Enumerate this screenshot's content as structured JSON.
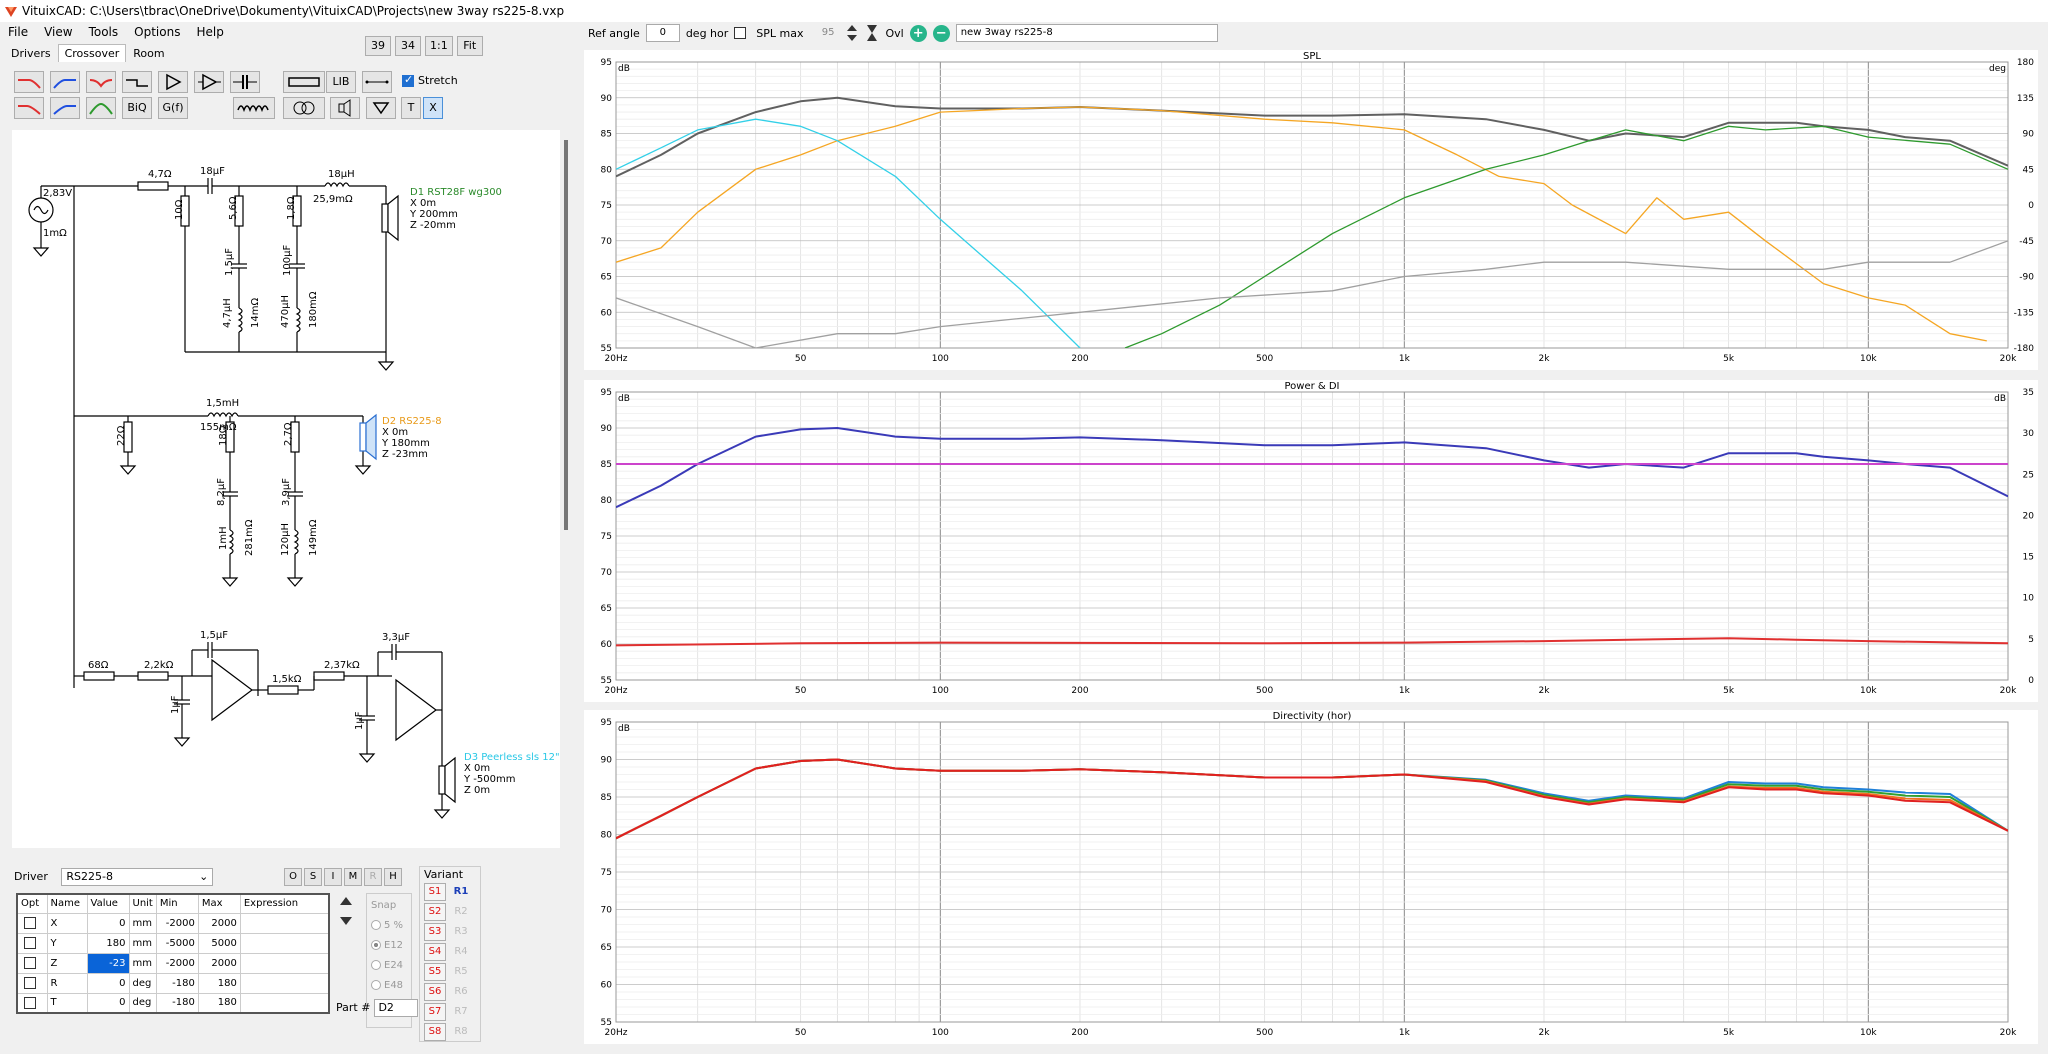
{
  "window": {
    "title": "VituixCAD: C:\\Users\\tbrac\\OneDrive\\Dokumenty\\VituixCAD\\Projects\\new 3way rs225-8.vxp"
  },
  "menu": [
    "File",
    "View",
    "Tools",
    "Options",
    "Help"
  ],
  "tabs": [
    {
      "label": "Drivers"
    },
    {
      "label": "Crossover"
    },
    {
      "label": "Room"
    }
  ],
  "view_buttons": [
    "39",
    "34",
    "1:1",
    "Fit"
  ],
  "toolbar": {
    "lib": "LIB",
    "biq": "BiQ",
    "gf": "G(f)",
    "t": "T",
    "x": "X",
    "stretch_label": "Stretch",
    "stretch_checked": true
  },
  "schematic": {
    "generator": {
      "voltage": "2,83V",
      "impedance": "1mΩ"
    },
    "tweeter": {
      "name": "D1 RST28F wg300",
      "x": "X 0m",
      "y": "Y 200mm",
      "z": "Z -20mm",
      "color": "#2a8a2a",
      "components": [
        "4,7Ω",
        "18µF",
        "18µH",
        "25,9mΩ",
        "10Ω",
        "5,6Ω",
        "1,8Ω",
        "1,5µF",
        "100µF",
        "4,7µH",
        "14mΩ",
        "470µH",
        "180mΩ"
      ]
    },
    "mid": {
      "name": "D2 RS225-8",
      "x": "X 0m",
      "y": "Y 180mm",
      "z": "Z -23mm",
      "color": "#e89a1a",
      "components": [
        "1,5mH",
        "155mΩ",
        "22Ω",
        "18Ω",
        "2,7Ω",
        "8,2µF",
        "3,9µF",
        "1mH",
        "281mΩ",
        "120µH",
        "149mΩ"
      ]
    },
    "woofer": {
      "name": "D3 Peerless sls 12\"",
      "x": "X 0m",
      "y": "Y -500mm",
      "z": "Z 0m",
      "color": "#2ac8e6",
      "components": [
        "68Ω",
        "2,2kΩ",
        "1,5µF",
        "1µF",
        "1,5kΩ",
        "2,37kΩ",
        "3,3µF",
        "1µF"
      ]
    }
  },
  "driver_panel": {
    "label": "Driver",
    "selected": "RS225-8",
    "buttons": [
      "O",
      "S",
      "I",
      "M",
      "R",
      "H"
    ],
    "headers": [
      "Opt",
      "Name",
      "Value",
      "Unit",
      "Min",
      "Max",
      "Expression"
    ],
    "rows": [
      {
        "name": "X",
        "value": "0",
        "unit": "mm",
        "min": "-2000",
        "max": "2000"
      },
      {
        "name": "Y",
        "value": "180",
        "unit": "mm",
        "min": "-5000",
        "max": "5000"
      },
      {
        "name": "Z",
        "value": "-23",
        "unit": "mm",
        "min": "-2000",
        "max": "2000"
      },
      {
        "name": "R",
        "value": "0",
        "unit": "deg",
        "min": "-180",
        "max": "180"
      },
      {
        "name": "T",
        "value": "0",
        "unit": "deg",
        "min": "-180",
        "max": "180"
      }
    ],
    "snap": {
      "label": "Snap",
      "options": [
        "5 %",
        "E12",
        "E24",
        "E48"
      ],
      "selected": "E12"
    },
    "part_label": "Part #",
    "part_value": "D2"
  },
  "variant": {
    "label": "Variant",
    "s": [
      "S1",
      "S2",
      "S3",
      "S4",
      "S5",
      "S6",
      "S7",
      "S8"
    ],
    "r": [
      "R1",
      "R2",
      "R3",
      "R4",
      "R5",
      "R6",
      "R7",
      "R8"
    ],
    "active": "R1"
  },
  "top_controls": {
    "ref_angle_label": "Ref angle",
    "ref_angle": "0",
    "deg_hor": "deg hor",
    "spl_max_label": "SPL max",
    "spl_max": "95",
    "ovl": "Ovl",
    "overlay_name": "new 3way rs225-8"
  },
  "chart_data": [
    {
      "type": "line",
      "title": "SPL",
      "x_label": "",
      "y_label": "dB",
      "y2_label": "deg",
      "x_scale": "log",
      "xlim": [
        20,
        20000
      ],
      "ylim": [
        55,
        95
      ],
      "y2lim": [
        -180,
        180
      ],
      "x_ticks": [
        "20Hz",
        "50",
        "100",
        "200",
        "500",
        "1k",
        "2k",
        "5k",
        "10k",
        "20k"
      ],
      "y_ticks": [
        95,
        90,
        85,
        80,
        75,
        70,
        65,
        60,
        55
      ],
      "y2_ticks": [
        180,
        135,
        90,
        45,
        0,
        -45,
        -90,
        -135,
        -180
      ],
      "series": [
        {
          "color": "#606060",
          "x": [
            20,
            25,
            30,
            40,
            50,
            60,
            80,
            100,
            150,
            200,
            300,
            500,
            700,
            1000,
            1500,
            2000,
            2500,
            3000,
            4000,
            5000,
            6000,
            7000,
            8000,
            10000,
            12000,
            15000,
            20000
          ],
          "y": [
            79,
            82,
            85,
            88,
            89.5,
            90,
            88.8,
            88.5,
            88.5,
            88.7,
            88.2,
            87.5,
            87.5,
            87.7,
            87,
            85.5,
            84,
            85,
            84.5,
            86.5,
            86.5,
            86.5,
            86,
            85.5,
            84.5,
            84,
            80.5
          ]
        },
        {
          "color": "#f5a623",
          "x": [
            20,
            25,
            30,
            40,
            50,
            60,
            80,
            100,
            150,
            200,
            300,
            500,
            700,
            1000,
            1300,
            1600,
            2000,
            2300,
            3000,
            3500,
            4000,
            5000,
            6000,
            8000,
            10000,
            12000,
            15000,
            18000
          ],
          "y": [
            67,
            69,
            74,
            80,
            82,
            84,
            86,
            88,
            88.5,
            88.7,
            88.2,
            87,
            86.5,
            85.5,
            82,
            79,
            78,
            75,
            71,
            76,
            73,
            74,
            70,
            64,
            62,
            61,
            57,
            56
          ]
        },
        {
          "color": "#2e9a2e",
          "x": [
            250,
            300,
            400,
            500,
            700,
            1000,
            1500,
            2000,
            2500,
            3000,
            4000,
            5000,
            6000,
            8000,
            10000,
            15000,
            20000
          ],
          "y": [
            55,
            57,
            61,
            65,
            71,
            76,
            80,
            82,
            84,
            85.5,
            84,
            86,
            85.5,
            86,
            84.5,
            83.5,
            80
          ]
        },
        {
          "color": "#33d0e8",
          "x": [
            20,
            25,
            30,
            40,
            50,
            60,
            80,
            100,
            150,
            200
          ],
          "y": [
            80,
            83,
            85.5,
            87,
            86,
            84,
            79,
            73,
            63,
            55
          ]
        },
        {
          "color": "#a0a0a0",
          "x": [
            20,
            30,
            40,
            60,
            80,
            100,
            200,
            400,
            700,
            1000,
            1500,
            2000,
            3000,
            5000,
            8000,
            10000,
            15000,
            20000
          ],
          "y": [
            62,
            58,
            55,
            57,
            57,
            58,
            60,
            62,
            63,
            65,
            66,
            67,
            67,
            66,
            66,
            67,
            67,
            70
          ]
        }
      ]
    },
    {
      "type": "line",
      "title": "Power & DI",
      "y_label": "dB",
      "y2_label": "dB",
      "x_scale": "log",
      "xlim": [
        20,
        20000
      ],
      "ylim": [
        55,
        95
      ],
      "y2lim": [
        0,
        35
      ],
      "x_ticks": [
        "20Hz",
        "50",
        "100",
        "200",
        "500",
        "1k",
        "2k",
        "5k",
        "10k",
        "20k"
      ],
      "y_ticks": [
        95,
        90,
        85,
        80,
        75,
        70,
        65,
        60,
        55
      ],
      "y2_ticks": [
        35,
        30,
        25,
        20,
        15,
        10,
        5,
        0
      ],
      "series": [
        {
          "color": "#3a3ab8",
          "x": [
            20,
            25,
            30,
            40,
            50,
            60,
            80,
            100,
            150,
            200,
            300,
            500,
            700,
            1000,
            1500,
            2000,
            2500,
            3000,
            4000,
            5000,
            6000,
            7000,
            8000,
            10000,
            12000,
            15000,
            20000
          ],
          "y": [
            79,
            82,
            85,
            88.8,
            89.8,
            90,
            88.8,
            88.5,
            88.5,
            88.7,
            88.3,
            87.6,
            87.6,
            88,
            87.2,
            85.5,
            84.5,
            85,
            84.5,
            86.5,
            86.5,
            86.5,
            86,
            85.5,
            85,
            84.5,
            80.5
          ]
        },
        {
          "color": "#cc44cc",
          "x": [
            20,
            20000
          ],
          "y": [
            85,
            85
          ]
        },
        {
          "color": "#e03030",
          "x": [
            20,
            50,
            100,
            500,
            1000,
            2000,
            5000,
            7000,
            10000,
            20000
          ],
          "y": [
            59.8,
            60.1,
            60.2,
            60.1,
            60.2,
            60.4,
            60.8,
            60.6,
            60.4,
            60.1
          ]
        }
      ]
    },
    {
      "type": "line",
      "title": "Directivity (hor)",
      "y_label": "dB",
      "x_scale": "log",
      "xlim": [
        20,
        20000
      ],
      "ylim": [
        55,
        95
      ],
      "x_ticks": [
        "20Hz",
        "50",
        "100",
        "200",
        "500",
        "1k",
        "2k",
        "5k",
        "10k",
        "20k"
      ],
      "y_ticks": [
        95,
        90,
        85,
        80,
        75,
        70,
        65,
        60,
        55
      ],
      "series": [
        {
          "color": "#2080d8",
          "x": [
            20,
            25,
            30,
            40,
            50,
            60,
            80,
            100,
            150,
            200,
            300,
            500,
            700,
            1000,
            1500,
            2000,
            2500,
            3000,
            4000,
            5000,
            6000,
            7000,
            8000,
            10000,
            12000,
            15000,
            20000
          ],
          "y": [
            79.5,
            82.5,
            85,
            88.8,
            89.8,
            90,
            88.8,
            88.5,
            88.5,
            88.7,
            88.3,
            87.6,
            87.6,
            88,
            87.3,
            85.5,
            84.5,
            85.2,
            84.8,
            87,
            86.8,
            86.8,
            86.3,
            86,
            85.6,
            85.4,
            80.5
          ]
        },
        {
          "color": "#30a030",
          "x": [
            20,
            25,
            30,
            40,
            50,
            60,
            80,
            100,
            150,
            200,
            300,
            500,
            700,
            1000,
            1500,
            2000,
            2500,
            3000,
            4000,
            5000,
            6000,
            7000,
            8000,
            10000,
            12000,
            15000,
            20000
          ],
          "y": [
            79.5,
            82.5,
            85,
            88.8,
            89.8,
            90,
            88.8,
            88.5,
            88.5,
            88.7,
            88.3,
            87.6,
            87.6,
            88,
            87.2,
            85.3,
            84.3,
            85,
            84.6,
            86.7,
            86.5,
            86.5,
            86,
            85.7,
            85.2,
            85,
            80.5
          ]
        },
        {
          "color": "#f07020",
          "x": [
            20,
            25,
            30,
            40,
            50,
            60,
            80,
            100,
            150,
            200,
            300,
            500,
            700,
            1000,
            1500,
            2000,
            2500,
            3000,
            4000,
            5000,
            6000,
            7000,
            8000,
            10000,
            12000,
            15000,
            20000
          ],
          "y": [
            79.5,
            82.5,
            85,
            88.8,
            89.8,
            90,
            88.8,
            88.5,
            88.5,
            88.7,
            88.3,
            87.6,
            87.6,
            88,
            87.1,
            85.1,
            84.1,
            84.8,
            84.4,
            86.4,
            86.2,
            86.2,
            85.7,
            85.4,
            84.8,
            84.6,
            80.5
          ]
        },
        {
          "color": "#e02020",
          "x": [
            20,
            25,
            30,
            40,
            50,
            60,
            80,
            100,
            150,
            200,
            300,
            500,
            700,
            1000,
            1500,
            2000,
            2500,
            3000,
            4000,
            5000,
            6000,
            7000,
            8000,
            10000,
            12000,
            15000,
            20000
          ],
          "y": [
            79.5,
            82.5,
            85,
            88.8,
            89.8,
            90,
            88.8,
            88.5,
            88.5,
            88.7,
            88.3,
            87.6,
            87.6,
            88,
            87,
            85,
            84,
            84.7,
            84.3,
            86.3,
            86,
            86,
            85.5,
            85.2,
            84.5,
            84.3,
            80.5
          ]
        }
      ]
    }
  ]
}
